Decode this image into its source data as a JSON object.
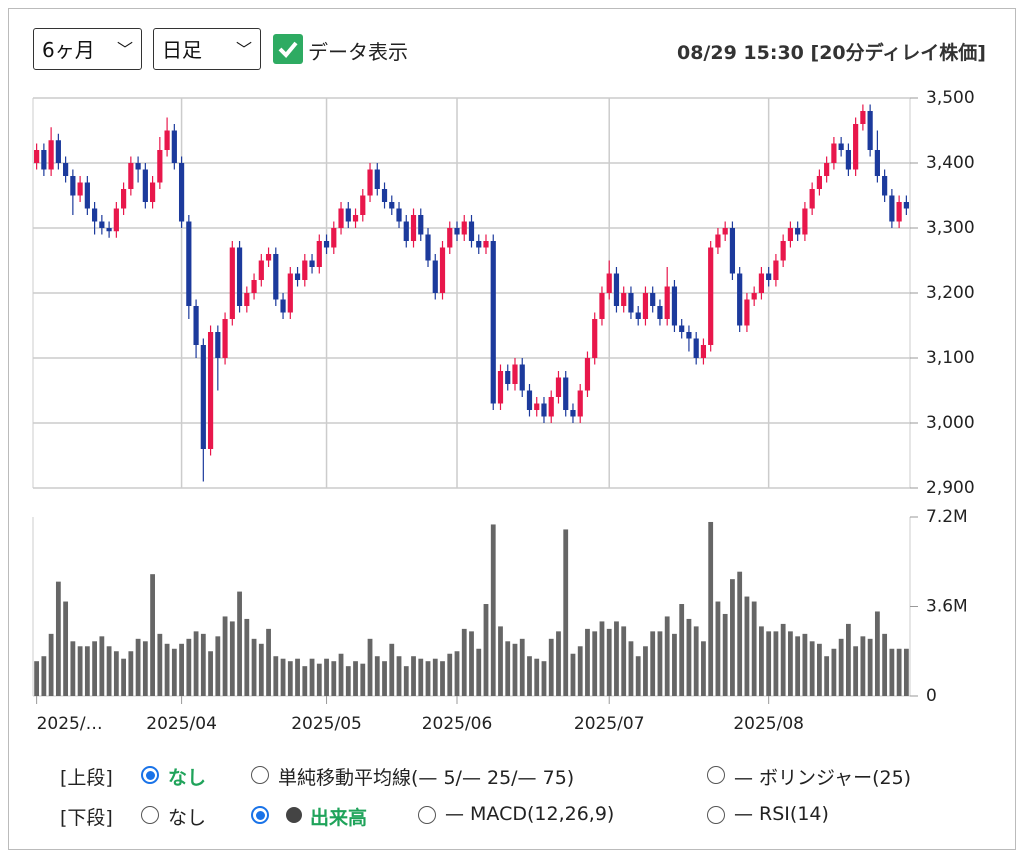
{
  "controls": {
    "period": "6ヶ月",
    "interval": "日足",
    "show_data": "データ表示",
    "timestamp": "08/29 15:30 [20分ディレイ株価]"
  },
  "upper": {
    "label": "[上段]",
    "options": [
      "なし",
      "単純移動平均線(— 5/— 25/— 75)",
      "— ボリンジャー(25)"
    ]
  },
  "lower": {
    "label": "[下段]",
    "options": [
      "なし",
      "出来高",
      "— MACD(12,26,9)",
      "— RSI(14)"
    ]
  },
  "chart_data": [
    {
      "type": "candlestick",
      "up_color": "#e8174b",
      "down_color": "#1c3a9c",
      "grid": true,
      "ylim": [
        2900,
        3500
      ],
      "yticks": [
        {
          "value": 2900,
          "label": "2,900"
        },
        {
          "value": 3000,
          "label": "3,000"
        },
        {
          "value": 3100,
          "label": "3,100"
        },
        {
          "value": 3200,
          "label": "3,200"
        },
        {
          "value": 3300,
          "label": "3,300"
        },
        {
          "value": 3400,
          "label": "3,400"
        },
        {
          "value": 3500,
          "label": "3,500"
        }
      ],
      "open": [
        3400,
        3420,
        3390,
        3435,
        3400,
        3380,
        3350,
        3370,
        3330,
        3310,
        3300,
        3295,
        3330,
        3360,
        3400,
        3390,
        3340,
        3370,
        3420,
        3450,
        3400,
        3310,
        3180,
        3120,
        2960,
        3140,
        3100,
        3160,
        3270,
        3180,
        3200,
        3220,
        3250,
        3260,
        3190,
        3170,
        3230,
        3220,
        3250,
        3240,
        3280,
        3270,
        3300,
        3330,
        3310,
        3320,
        3350,
        3390,
        3360,
        3340,
        3330,
        3310,
        3280,
        3320,
        3290,
        3250,
        3200,
        3270,
        3300,
        3290,
        3310,
        3280,
        3270,
        3280,
        3030,
        3080,
        3060,
        3090,
        3050,
        3020,
        3030,
        3010,
        3040,
        3070,
        3020,
        3010,
        3050,
        3100,
        3160,
        3200,
        3230,
        3180,
        3200,
        3170,
        3160,
        3200,
        3180,
        3160,
        3210,
        3150,
        3140,
        3130,
        3100,
        3120,
        3270,
        3290,
        3300,
        3230,
        3150,
        3190,
        3200,
        3230,
        3220,
        3250,
        3280,
        3300,
        3290,
        3330,
        3360,
        3380,
        3400,
        3430,
        3420,
        3390,
        3460,
        3480,
        3420,
        3380,
        3350,
        3310,
        3340
      ],
      "high": [
        3430,
        3430,
        3455,
        3445,
        3410,
        3390,
        3380,
        3380,
        3340,
        3320,
        3310,
        3340,
        3370,
        3410,
        3410,
        3400,
        3380,
        3440,
        3470,
        3460,
        3410,
        3320,
        3190,
        3130,
        3150,
        3150,
        3170,
        3280,
        3280,
        3210,
        3230,
        3260,
        3270,
        3270,
        3200,
        3240,
        3240,
        3260,
        3260,
        3290,
        3290,
        3310,
        3340,
        3340,
        3330,
        3360,
        3400,
        3400,
        3370,
        3350,
        3340,
        3320,
        3330,
        3330,
        3300,
        3260,
        3280,
        3310,
        3310,
        3320,
        3320,
        3290,
        3290,
        3290,
        3090,
        3090,
        3100,
        3100,
        3060,
        3040,
        3040,
        3050,
        3080,
        3080,
        3030,
        3060,
        3110,
        3170,
        3210,
        3250,
        3240,
        3210,
        3210,
        3180,
        3210,
        3210,
        3190,
        3240,
        3220,
        3160,
        3150,
        3140,
        3130,
        3280,
        3300,
        3310,
        3310,
        3240,
        3200,
        3210,
        3240,
        3240,
        3260,
        3290,
        3310,
        3310,
        3340,
        3370,
        3390,
        3410,
        3440,
        3440,
        3430,
        3470,
        3490,
        3490,
        3450,
        3390,
        3360,
        3350,
        3350
      ],
      "low": [
        3390,
        3380,
        3380,
        3390,
        3370,
        3320,
        3340,
        3320,
        3290,
        3290,
        3285,
        3285,
        3320,
        3350,
        3370,
        3330,
        3330,
        3360,
        3410,
        3390,
        3300,
        3160,
        3100,
        2910,
        2950,
        3050,
        3090,
        3150,
        3170,
        3170,
        3190,
        3210,
        3240,
        3180,
        3160,
        3160,
        3210,
        3210,
        3230,
        3230,
        3260,
        3260,
        3290,
        3300,
        3300,
        3310,
        3340,
        3350,
        3330,
        3320,
        3300,
        3270,
        3270,
        3280,
        3240,
        3190,
        3190,
        3260,
        3280,
        3280,
        3270,
        3260,
        3260,
        3020,
        3020,
        3050,
        3050,
        3040,
        3010,
        3010,
        3000,
        3000,
        3030,
        3010,
        3000,
        3000,
        3040,
        3090,
        3150,
        3190,
        3170,
        3170,
        3160,
        3150,
        3150,
        3170,
        3150,
        3150,
        3140,
        3130,
        3110,
        3090,
        3090,
        3110,
        3260,
        3280,
        3220,
        3140,
        3140,
        3180,
        3190,
        3210,
        3210,
        3240,
        3270,
        3280,
        3280,
        3320,
        3350,
        3370,
        3390,
        3410,
        3380,
        3380,
        3450,
        3410,
        3370,
        3340,
        3300,
        3300,
        3320
      ],
      "close": [
        3420,
        3390,
        3435,
        3400,
        3380,
        3350,
        3370,
        3330,
        3310,
        3300,
        3295,
        3330,
        3360,
        3400,
        3390,
        3340,
        3370,
        3420,
        3450,
        3400,
        3310,
        3180,
        3120,
        2960,
        3140,
        3100,
        3160,
        3270,
        3180,
        3200,
        3220,
        3250,
        3260,
        3190,
        3170,
        3230,
        3220,
        3250,
        3240,
        3280,
        3270,
        3300,
        3330,
        3310,
        3320,
        3350,
        3390,
        3360,
        3340,
        3330,
        3310,
        3280,
        3320,
        3290,
        3250,
        3200,
        3270,
        3300,
        3290,
        3310,
        3280,
        3270,
        3280,
        3030,
        3080,
        3060,
        3090,
        3050,
        3020,
        3030,
        3010,
        3040,
        3070,
        3020,
        3010,
        3050,
        3100,
        3160,
        3200,
        3230,
        3180,
        3200,
        3170,
        3160,
        3200,
        3180,
        3160,
        3210,
        3150,
        3140,
        3130,
        3100,
        3120,
        3270,
        3290,
        3300,
        3230,
        3150,
        3190,
        3200,
        3230,
        3220,
        3250,
        3280,
        3300,
        3290,
        3330,
        3360,
        3380,
        3400,
        3430,
        3420,
        3390,
        3460,
        3480,
        3420,
        3380,
        3350,
        3310,
        3340,
        3330
      ]
    },
    {
      "type": "bar",
      "color": "#666666",
      "ylim": [
        0,
        7.2
      ],
      "yticks": [
        0,
        {
          "value": 3.6,
          "label": "3.6M"
        },
        {
          "value": 7.2,
          "label": "7.2M"
        }
      ],
      "categories": [
        "2025/…",
        null,
        null,
        null,
        null,
        null,
        null,
        null,
        null,
        null,
        null,
        null,
        null,
        null,
        null,
        null,
        null,
        null,
        null,
        null,
        "2025/04",
        null,
        null,
        null,
        null,
        null,
        null,
        null,
        null,
        null,
        null,
        null,
        null,
        null,
        null,
        null,
        null,
        null,
        null,
        null,
        "2025/05",
        null,
        null,
        null,
        null,
        null,
        null,
        null,
        null,
        null,
        null,
        null,
        null,
        null,
        null,
        null,
        null,
        null,
        "2025/06",
        null,
        null,
        null,
        null,
        null,
        null,
        null,
        null,
        null,
        null,
        null,
        null,
        null,
        null,
        null,
        null,
        null,
        null,
        null,
        null,
        "2025/07",
        null,
        null,
        null,
        null,
        null,
        null,
        null,
        null,
        null,
        null,
        null,
        null,
        null,
        null,
        null,
        null,
        null,
        null,
        null,
        null,
        null,
        "2025/08",
        null,
        null,
        null,
        null,
        null,
        null,
        null,
        null,
        null,
        null,
        null,
        null,
        null,
        null,
        null,
        null,
        null,
        null,
        null
      ],
      "values": [
        1.4,
        1.6,
        2.5,
        4.6,
        3.8,
        2.2,
        2.0,
        2.0,
        2.2,
        2.4,
        2.0,
        1.8,
        1.5,
        1.8,
        2.3,
        2.2,
        4.9,
        2.5,
        2.1,
        1.9,
        2.1,
        2.3,
        2.6,
        2.5,
        1.8,
        2.4,
        3.2,
        3.0,
        4.2,
        3.1,
        2.3,
        2.1,
        2.7,
        1.6,
        1.5,
        1.4,
        1.5,
        1.2,
        1.5,
        1.3,
        1.5,
        1.4,
        1.7,
        1.2,
        1.4,
        1.3,
        2.3,
        1.6,
        1.4,
        2.1,
        1.6,
        1.2,
        1.6,
        1.5,
        1.4,
        1.5,
        1.4,
        1.7,
        1.8,
        2.7,
        2.6,
        1.9,
        3.7,
        6.9,
        2.8,
        2.2,
        2.1,
        2.3,
        1.6,
        1.5,
        1.4,
        2.3,
        2.6,
        6.7,
        1.7,
        2.0,
        2.7,
        2.6,
        3.0,
        2.7,
        3.0,
        2.8,
        2.2,
        1.6,
        2.0,
        2.6,
        2.6,
        3.2,
        2.5,
        3.7,
        3.1,
        2.8,
        2.2,
        7.0,
        3.8,
        3.3,
        4.7,
        5.0,
        4.0,
        3.8,
        2.8,
        2.6,
        2.6,
        2.9,
        2.6,
        2.4,
        2.5,
        2.2,
        2.1,
        1.6,
        1.9,
        2.3,
        2.9,
        2.0,
        2.4,
        2.3,
        3.4,
        2.5,
        1.9,
        1.9,
        1.9
      ]
    }
  ]
}
